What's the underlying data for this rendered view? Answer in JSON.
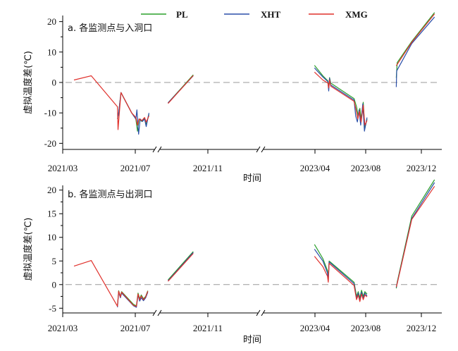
{
  "legend": [
    {
      "name": "PL",
      "color": "#2ca02c"
    },
    {
      "name": "XHT",
      "color": "#2a4fa8"
    },
    {
      "name": "XMG",
      "color": "#e0312c"
    }
  ],
  "chart_data": [
    {
      "type": "line",
      "title": "a. 各监测点与入洞口",
      "xlabel": "时间",
      "ylabel": "虚拟温度差(℃)",
      "ylim": [
        -22,
        22
      ],
      "yticks": [
        -20,
        -10,
        0,
        10,
        20
      ],
      "xticks": [
        "2021/03",
        "2021/07",
        "2021/11",
        "2023/04",
        "2023/08",
        "2023/12"
      ],
      "axis_breaks": [
        "2021/08",
        "2022/01"
      ],
      "grid": false,
      "reference_line": 0,
      "series": [
        {
          "name": "PL",
          "segments": [
            [
              [
                "2021-06-01",
                -12
              ],
              [
                "2021-06-03",
                -10
              ],
              [
                "2021-06-07",
                -3.3
              ],
              [
                "2021-06-25",
                -10
              ],
              [
                "2021-07-02",
                -12
              ],
              [
                "2021-07-05",
                -16
              ],
              [
                "2021-07-08",
                -12
              ],
              [
                "2021-07-13",
                -12.8
              ],
              [
                "2021-07-18",
                -11.8
              ],
              [
                "2021-07-21",
                -13.8
              ],
              [
                "2021-07-26",
                -10.5
              ]
            ],
            [
              [
                "2021-09-02",
                -6.7
              ],
              [
                "2021-10-10",
                2.5
              ]
            ],
            [
              [
                "2023-03-28",
                5.6
              ],
              [
                "2023-04-20",
                2.2
              ],
              [
                "2023-05-02",
                0.5
              ],
              [
                "2023-05-04",
                -1.5
              ],
              [
                "2023-05-06",
                1.6
              ],
              [
                "2023-05-09",
                -0.2
              ],
              [
                "2023-07-04",
                -5.3
              ],
              [
                "2023-07-10",
                -8
              ],
              [
                "2023-07-14",
                -11
              ],
              [
                "2023-07-18",
                -8.5
              ],
              [
                "2023-07-21",
                -12
              ],
              [
                "2023-07-26",
                -6.5
              ],
              [
                "2023-07-30",
                -15
              ],
              [
                "2023-08-04",
                -12
              ]
            ],
            [
              [
                "2023-10-07",
                1.5
              ],
              [
                "2023-10-09",
                6.5
              ],
              [
                "2023-11-10",
                13.5
              ],
              [
                "2023-12-30",
                23
              ]
            ]
          ]
        },
        {
          "name": "XHT",
          "segments": [
            [
              [
                "2021-06-01",
                -12
              ],
              [
                "2021-06-03",
                -10
              ],
              [
                "2021-06-07",
                -3.3
              ],
              [
                "2021-06-25",
                -10
              ],
              [
                "2021-07-02",
                -12
              ],
              [
                "2021-07-04",
                -9
              ],
              [
                "2021-07-07",
                -17
              ],
              [
                "2021-07-10",
                -12
              ],
              [
                "2021-07-14",
                -12.8
              ],
              [
                "2021-07-18",
                -12
              ],
              [
                "2021-07-21",
                -14.5
              ],
              [
                "2021-07-26",
                -10
              ]
            ],
            [
              [
                "2021-09-02",
                -6.7
              ],
              [
                "2021-10-10",
                2.2
              ]
            ],
            [
              [
                "2023-03-28",
                4.8
              ],
              [
                "2023-04-20",
                1.8
              ],
              [
                "2023-05-02",
                0.3
              ],
              [
                "2023-05-04",
                -2.8
              ],
              [
                "2023-05-06",
                1.4
              ],
              [
                "2023-05-09",
                -0.8
              ],
              [
                "2023-07-04",
                -5.8
              ],
              [
                "2023-07-08",
                -11
              ],
              [
                "2023-07-12",
                -13
              ],
              [
                "2023-07-16",
                -9
              ],
              [
                "2023-07-20",
                -14
              ],
              [
                "2023-07-25",
                -7
              ],
              [
                "2023-07-29",
                -16
              ],
              [
                "2023-08-04",
                -11.5
              ]
            ],
            [
              [
                "2023-10-07",
                -1.5
              ],
              [
                "2023-10-08",
                3.8
              ],
              [
                "2023-11-10",
                12.8
              ],
              [
                "2023-12-30",
                21.5
              ]
            ]
          ]
        },
        {
          "name": "XMG",
          "segments": [
            [
              [
                "2021-03-20",
                0.8
              ],
              [
                "2021-04-18",
                2.2
              ],
              [
                "2021-06-01",
                -8
              ],
              [
                "2021-06-02",
                -15.5
              ],
              [
                "2021-06-04",
                -10.5
              ],
              [
                "2021-06-07",
                -3.3
              ],
              [
                "2021-06-25",
                -10
              ],
              [
                "2021-07-02",
                -11.5
              ],
              [
                "2021-07-05",
                -14
              ],
              [
                "2021-07-08",
                -12
              ],
              [
                "2021-07-13",
                -12.5
              ],
              [
                "2021-07-18",
                -11.5
              ],
              [
                "2021-07-21",
                -13
              ],
              [
                "2021-07-26",
                -11
              ]
            ],
            [
              [
                "2021-09-02",
                -6.9
              ],
              [
                "2021-10-10",
                2.3
              ]
            ],
            [
              [
                "2023-03-28",
                3.4
              ],
              [
                "2023-04-20",
                0.8
              ],
              [
                "2023-05-02",
                -0.2
              ],
              [
                "2023-05-04",
                -1.8
              ],
              [
                "2023-05-06",
                0.8
              ],
              [
                "2023-05-09",
                -1.2
              ],
              [
                "2023-07-04",
                -6.2
              ],
              [
                "2023-07-09",
                -9
              ],
              [
                "2023-07-13",
                -12
              ],
              [
                "2023-07-17",
                -9.5
              ],
              [
                "2023-07-21",
                -13
              ],
              [
                "2023-07-26",
                -7.5
              ],
              [
                "2023-07-30",
                -14
              ],
              [
                "2023-08-04",
                -12.5
              ]
            ],
            [
              [
                "2023-10-07",
                5.5
              ],
              [
                "2023-11-10",
                13.2
              ],
              [
                "2023-12-30",
                22.5
              ]
            ]
          ]
        }
      ]
    },
    {
      "type": "line",
      "title": "b. 各监测点与出洞口",
      "xlabel": "时间",
      "ylabel": "虚拟温度差(℃)",
      "ylim": [
        -6,
        21
      ],
      "yticks": [
        -5,
        0,
        5,
        10,
        15,
        20
      ],
      "xticks": [
        "2021/03",
        "2021/07",
        "2021/11",
        "2023/04",
        "2023/08",
        "2023/12"
      ],
      "axis_breaks": [
        "2021/08",
        "2022/01"
      ],
      "grid": false,
      "reference_line": 0,
      "series": [
        {
          "name": "PL",
          "segments": [
            [
              [
                "2021-06-01",
                -4.5
              ],
              [
                "2021-06-03",
                -1.3
              ],
              [
                "2021-06-06",
                -2.5
              ],
              [
                "2021-06-08",
                -1.5
              ],
              [
                "2021-06-28",
                -4.2
              ],
              [
                "2021-07-03",
                -4.5
              ],
              [
                "2021-07-06",
                -1.8
              ],
              [
                "2021-07-09",
                -3
              ],
              [
                "2021-07-12",
                -2.2
              ],
              [
                "2021-07-16",
                -3
              ],
              [
                "2021-07-20",
                -2.5
              ],
              [
                "2021-07-24",
                -1.3
              ]
            ],
            [
              [
                "2021-09-02",
                1
              ],
              [
                "2021-10-10",
                7
              ]
            ],
            [
              [
                "2023-03-28",
                8.5
              ],
              [
                "2023-04-20",
                5.5
              ],
              [
                "2023-05-01",
                3
              ],
              [
                "2023-05-03",
                1.5
              ],
              [
                "2023-05-05",
                5
              ],
              [
                "2023-07-04",
                0.5
              ],
              [
                "2023-07-10",
                -2.5
              ],
              [
                "2023-07-14",
                -1.5
              ],
              [
                "2023-07-18",
                -2.8
              ],
              [
                "2023-07-22",
                -1.2
              ],
              [
                "2023-07-26",
                -2.5
              ],
              [
                "2023-07-30",
                -1.5
              ],
              [
                "2023-08-04",
                -2
              ]
            ],
            [
              [
                "2023-10-07",
                -0.8
              ],
              [
                "2023-10-09",
                0.5
              ],
              [
                "2023-11-10",
                14.5
              ],
              [
                "2023-12-30",
                22.2
              ]
            ]
          ]
        },
        {
          "name": "XHT",
          "segments": [
            [
              [
                "2021-06-01",
                -4.8
              ],
              [
                "2021-06-03",
                -1.6
              ],
              [
                "2021-06-06",
                -2.8
              ],
              [
                "2021-06-08",
                -1.8
              ],
              [
                "2021-06-28",
                -4.5
              ],
              [
                "2021-07-03",
                -4.8
              ],
              [
                "2021-07-06",
                -2.2
              ],
              [
                "2021-07-09",
                -3.5
              ],
              [
                "2021-07-12",
                -2.8
              ],
              [
                "2021-07-16",
                -3.4
              ],
              [
                "2021-07-20",
                -2.8
              ],
              [
                "2021-07-24",
                -1.6
              ]
            ],
            [
              [
                "2021-09-02",
                0.8
              ],
              [
                "2021-10-10",
                6.8
              ]
            ],
            [
              [
                "2023-03-28",
                7.5
              ],
              [
                "2023-04-20",
                5
              ],
              [
                "2023-05-01",
                2.5
              ],
              [
                "2023-05-03",
                0.8
              ],
              [
                "2023-05-05",
                4.8
              ],
              [
                "2023-07-04",
                0.2
              ],
              [
                "2023-07-10",
                -3
              ],
              [
                "2023-07-14",
                -1.8
              ],
              [
                "2023-07-18",
                -3.4
              ],
              [
                "2023-07-22",
                -1.6
              ],
              [
                "2023-07-26",
                -3
              ],
              [
                "2023-07-30",
                -1.8
              ],
              [
                "2023-08-04",
                -2.4
              ]
            ],
            [
              [
                "2023-10-07",
                -0.6
              ],
              [
                "2023-10-09",
                0.3
              ],
              [
                "2023-11-10",
                14
              ],
              [
                "2023-12-30",
                21.6
              ]
            ]
          ]
        },
        {
          "name": "XMG",
          "segments": [
            [
              [
                "2021-03-20",
                3.9
              ],
              [
                "2021-04-18",
                5.1
              ],
              [
                "2021-06-01",
                -4.6
              ],
              [
                "2021-06-03",
                -1.4
              ],
              [
                "2021-06-06",
                -2.6
              ],
              [
                "2021-06-08",
                -1.6
              ],
              [
                "2021-06-28",
                -4.4
              ],
              [
                "2021-07-03",
                -4.6
              ],
              [
                "2021-07-06",
                -2
              ],
              [
                "2021-07-09",
                -3.2
              ],
              [
                "2021-07-12",
                -2.4
              ],
              [
                "2021-07-16",
                -3.2
              ],
              [
                "2021-07-20",
                -2.6
              ],
              [
                "2021-07-24",
                -1.4
              ]
            ],
            [
              [
                "2021-09-02",
                0.7
              ],
              [
                "2021-10-10",
                6.6
              ]
            ],
            [
              [
                "2023-03-28",
                6
              ],
              [
                "2023-04-20",
                3.8
              ],
              [
                "2023-05-01",
                1.8
              ],
              [
                "2023-05-03",
                0.5
              ],
              [
                "2023-05-05",
                4.5
              ],
              [
                "2023-07-04",
                -0.2
              ],
              [
                "2023-07-10",
                -3.2
              ],
              [
                "2023-07-14",
                -2.2
              ],
              [
                "2023-07-18",
                -3.6
              ],
              [
                "2023-07-22",
                -2
              ],
              [
                "2023-07-26",
                -3.2
              ],
              [
                "2023-07-30",
                -2.2
              ],
              [
                "2023-08-04",
                -2.6
              ]
            ],
            [
              [
                "2023-10-07",
                -0.5
              ],
              [
                "2023-10-09",
                0.2
              ],
              [
                "2023-11-10",
                13.8
              ],
              [
                "2023-12-30",
                20.8
              ]
            ]
          ]
        }
      ]
    }
  ]
}
